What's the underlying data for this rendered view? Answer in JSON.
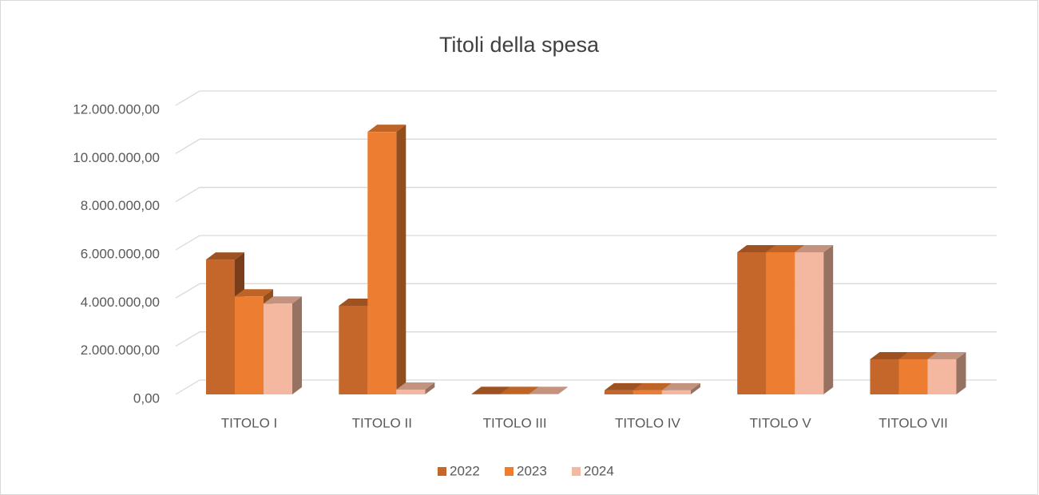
{
  "chart_data": {
    "type": "bar3d",
    "title": "Titoli della spesa",
    "categories": [
      "TITOLO I",
      "TITOLO II",
      "TITOLO III",
      "TITOLO IV",
      "TITOLO V",
      "TITOLO VII"
    ],
    "series": [
      {
        "name": "2022",
        "color": "#c5662a",
        "values": [
          5600000,
          3680000,
          20000,
          170000,
          5900000,
          1460000
        ]
      },
      {
        "name": "2023",
        "color": "#ed7d31",
        "values": [
          4070000,
          10900000,
          20000,
          170000,
          5900000,
          1460000
        ]
      },
      {
        "name": "2024",
        "color": "#f4b8a0",
        "values": [
          3770000,
          200000,
          20000,
          170000,
          5900000,
          1460000
        ]
      }
    ],
    "ylim": [
      0,
      12000000
    ],
    "yticks": [
      {
        "value": 0,
        "label": "0,00"
      },
      {
        "value": 2000000,
        "label": "2.000.000,00"
      },
      {
        "value": 4000000,
        "label": "4.000.000,00"
      },
      {
        "value": 6000000,
        "label": "6.000.000,00"
      },
      {
        "value": 8000000,
        "label": "8.000.000,00"
      },
      {
        "value": 10000000,
        "label": "10.000.000,00"
      },
      {
        "value": 12000000,
        "label": "12.000.000,00"
      }
    ],
    "grid": true,
    "legend": "bottom"
  }
}
